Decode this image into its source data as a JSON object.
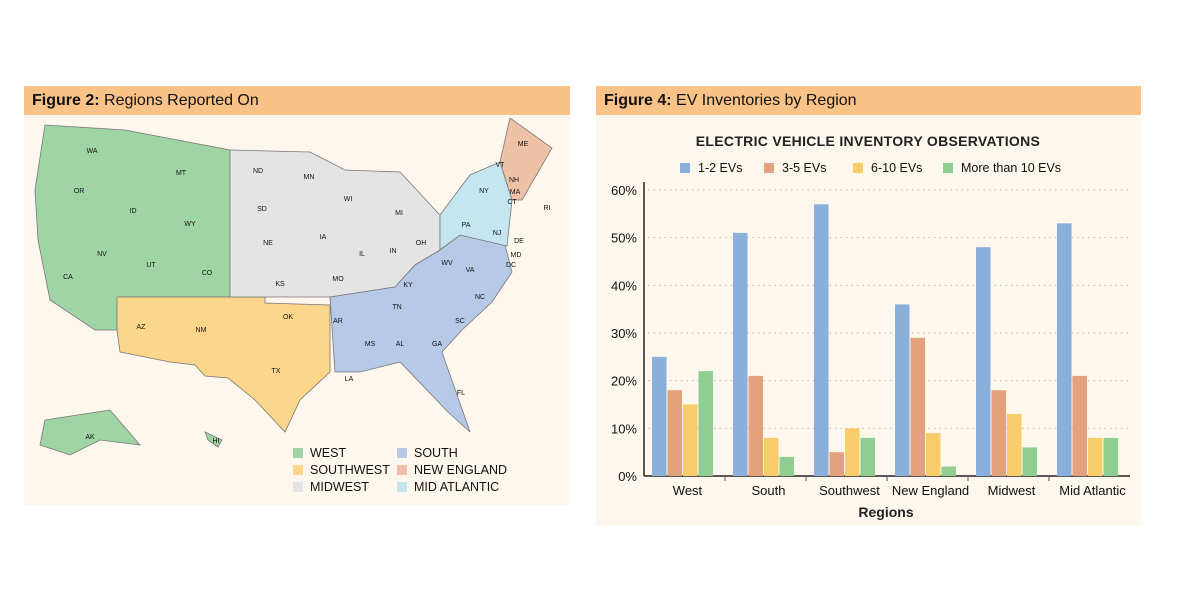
{
  "figure2": {
    "label": "Figure 2:",
    "title": "Regions Reported On",
    "legend": [
      {
        "name": "WEST",
        "color": "#9fd4a4"
      },
      {
        "name": "SOUTHWEST",
        "color": "#fbd68b"
      },
      {
        "name": "MIDWEST",
        "color": "#e4e4e4"
      },
      {
        "name": "SOUTH",
        "color": "#b6c9e6"
      },
      {
        "name": "NEW ENGLAND",
        "color": "#efc2a8"
      },
      {
        "name": "MID ATLANTIC",
        "color": "#c5e6f0"
      }
    ],
    "states": [
      "WA",
      "OR",
      "CA",
      "ID",
      "NV",
      "MT",
      "WY",
      "UT",
      "CO",
      "AZ",
      "NM",
      "TX",
      "OK",
      "ND",
      "SD",
      "NE",
      "KS",
      "MN",
      "IA",
      "MO",
      "WI",
      "IL",
      "MI",
      "IN",
      "OH",
      "KY",
      "TN",
      "AR",
      "MS",
      "AL",
      "GA",
      "SC",
      "NC",
      "VA",
      "WV",
      "FL",
      "LA",
      "NY",
      "PA",
      "ME",
      "VT",
      "NH",
      "MA",
      "CT",
      "RI",
      "NJ",
      "DE",
      "MD",
      "DC",
      "AK",
      "HI"
    ]
  },
  "figure4": {
    "label": "Figure 4:",
    "title": "EV Inventories by Region"
  },
  "chart_data": {
    "type": "bar",
    "title": "ELECTRIC VEHICLE INVENTORY OBSERVATIONS",
    "xlabel": "Regions",
    "ylabel": "",
    "ylim": [
      0,
      60
    ],
    "yticks": [
      "0%",
      "10%",
      "20%",
      "30%",
      "40%",
      "50%",
      "60%"
    ],
    "grid": true,
    "legend_position": "top",
    "categories": [
      "West",
      "South",
      "Southwest",
      "New England",
      "Midwest",
      "Mid Atlantic"
    ],
    "series": [
      {
        "name": "1-2 EVs",
        "color": "#8aafda",
        "values": [
          25,
          51,
          57,
          36,
          48,
          53
        ]
      },
      {
        "name": "3-5 EVs",
        "color": "#e4a27c",
        "values": [
          18,
          21,
          5,
          29,
          18,
          21
        ]
      },
      {
        "name": "6-10 EVs",
        "color": "#f8cc68",
        "values": [
          15,
          8,
          10,
          9,
          13,
          8
        ]
      },
      {
        "name": "More than 10 EVs",
        "color": "#8fcd90",
        "values": [
          22,
          4,
          8,
          2,
          6,
          8
        ]
      }
    ]
  }
}
